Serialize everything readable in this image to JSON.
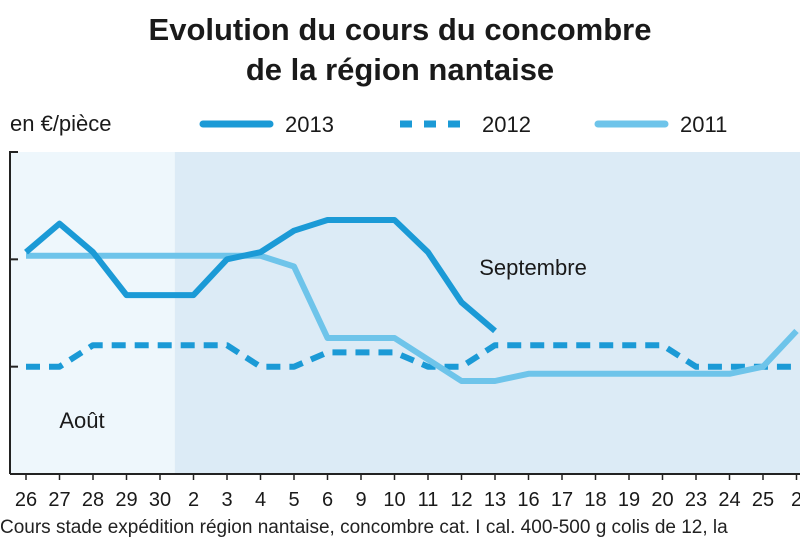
{
  "chart_data": {
    "type": "line",
    "title": "Evolution du cours du concombre",
    "subtitle": "de la région nantaise",
    "ylabel": "en €/pièce",
    "categories": [
      "26",
      "27",
      "28",
      "29",
      "30",
      "2",
      "3",
      "4",
      "5",
      "6",
      "9",
      "10",
      "11",
      "12",
      "13",
      "16",
      "17",
      "18",
      "19",
      "20",
      "23",
      "24",
      "25",
      "2"
    ],
    "series": [
      {
        "name": "2013",
        "style": "solid",
        "color": "#1b9ad6",
        "values": [
          0.62,
          0.7,
          0.62,
          0.5,
          0.5,
          0.5,
          0.6,
          0.62,
          0.68,
          0.71,
          0.71,
          0.71,
          0.62,
          0.48,
          0.4,
          null,
          null,
          null,
          null,
          null,
          null,
          null,
          null,
          null
        ]
      },
      {
        "name": "2012",
        "style": "dashed",
        "color": "#1b9ad6",
        "values": [
          0.3,
          0.3,
          0.36,
          0.36,
          0.36,
          0.36,
          0.36,
          0.3,
          0.3,
          0.34,
          0.34,
          0.34,
          0.3,
          0.3,
          0.36,
          0.36,
          0.36,
          0.36,
          0.36,
          0.36,
          0.3,
          0.3,
          0.3,
          0.3
        ]
      },
      {
        "name": "2011",
        "style": "solid",
        "color": "#6ec4ea",
        "values": [
          0.61,
          0.61,
          0.61,
          0.61,
          0.61,
          0.61,
          0.61,
          0.61,
          0.58,
          0.38,
          0.38,
          0.38,
          0.32,
          0.26,
          0.26,
          0.28,
          0.28,
          0.28,
          0.28,
          0.28,
          0.28,
          0.28,
          0.3,
          0.4
        ]
      }
    ],
    "month_labels": [
      "Août",
      "Septembre"
    ],
    "footnote": "Cours stade expédition région nantaise, concombre cat. I cal. 400-500 g colis de 12, la",
    "ylim": [
      0,
      0.9
    ],
    "grid": false,
    "legend": "top"
  },
  "colors": {
    "background_august": "#eef7fc",
    "background_september": "#dcebf6",
    "axis": "#222222"
  }
}
